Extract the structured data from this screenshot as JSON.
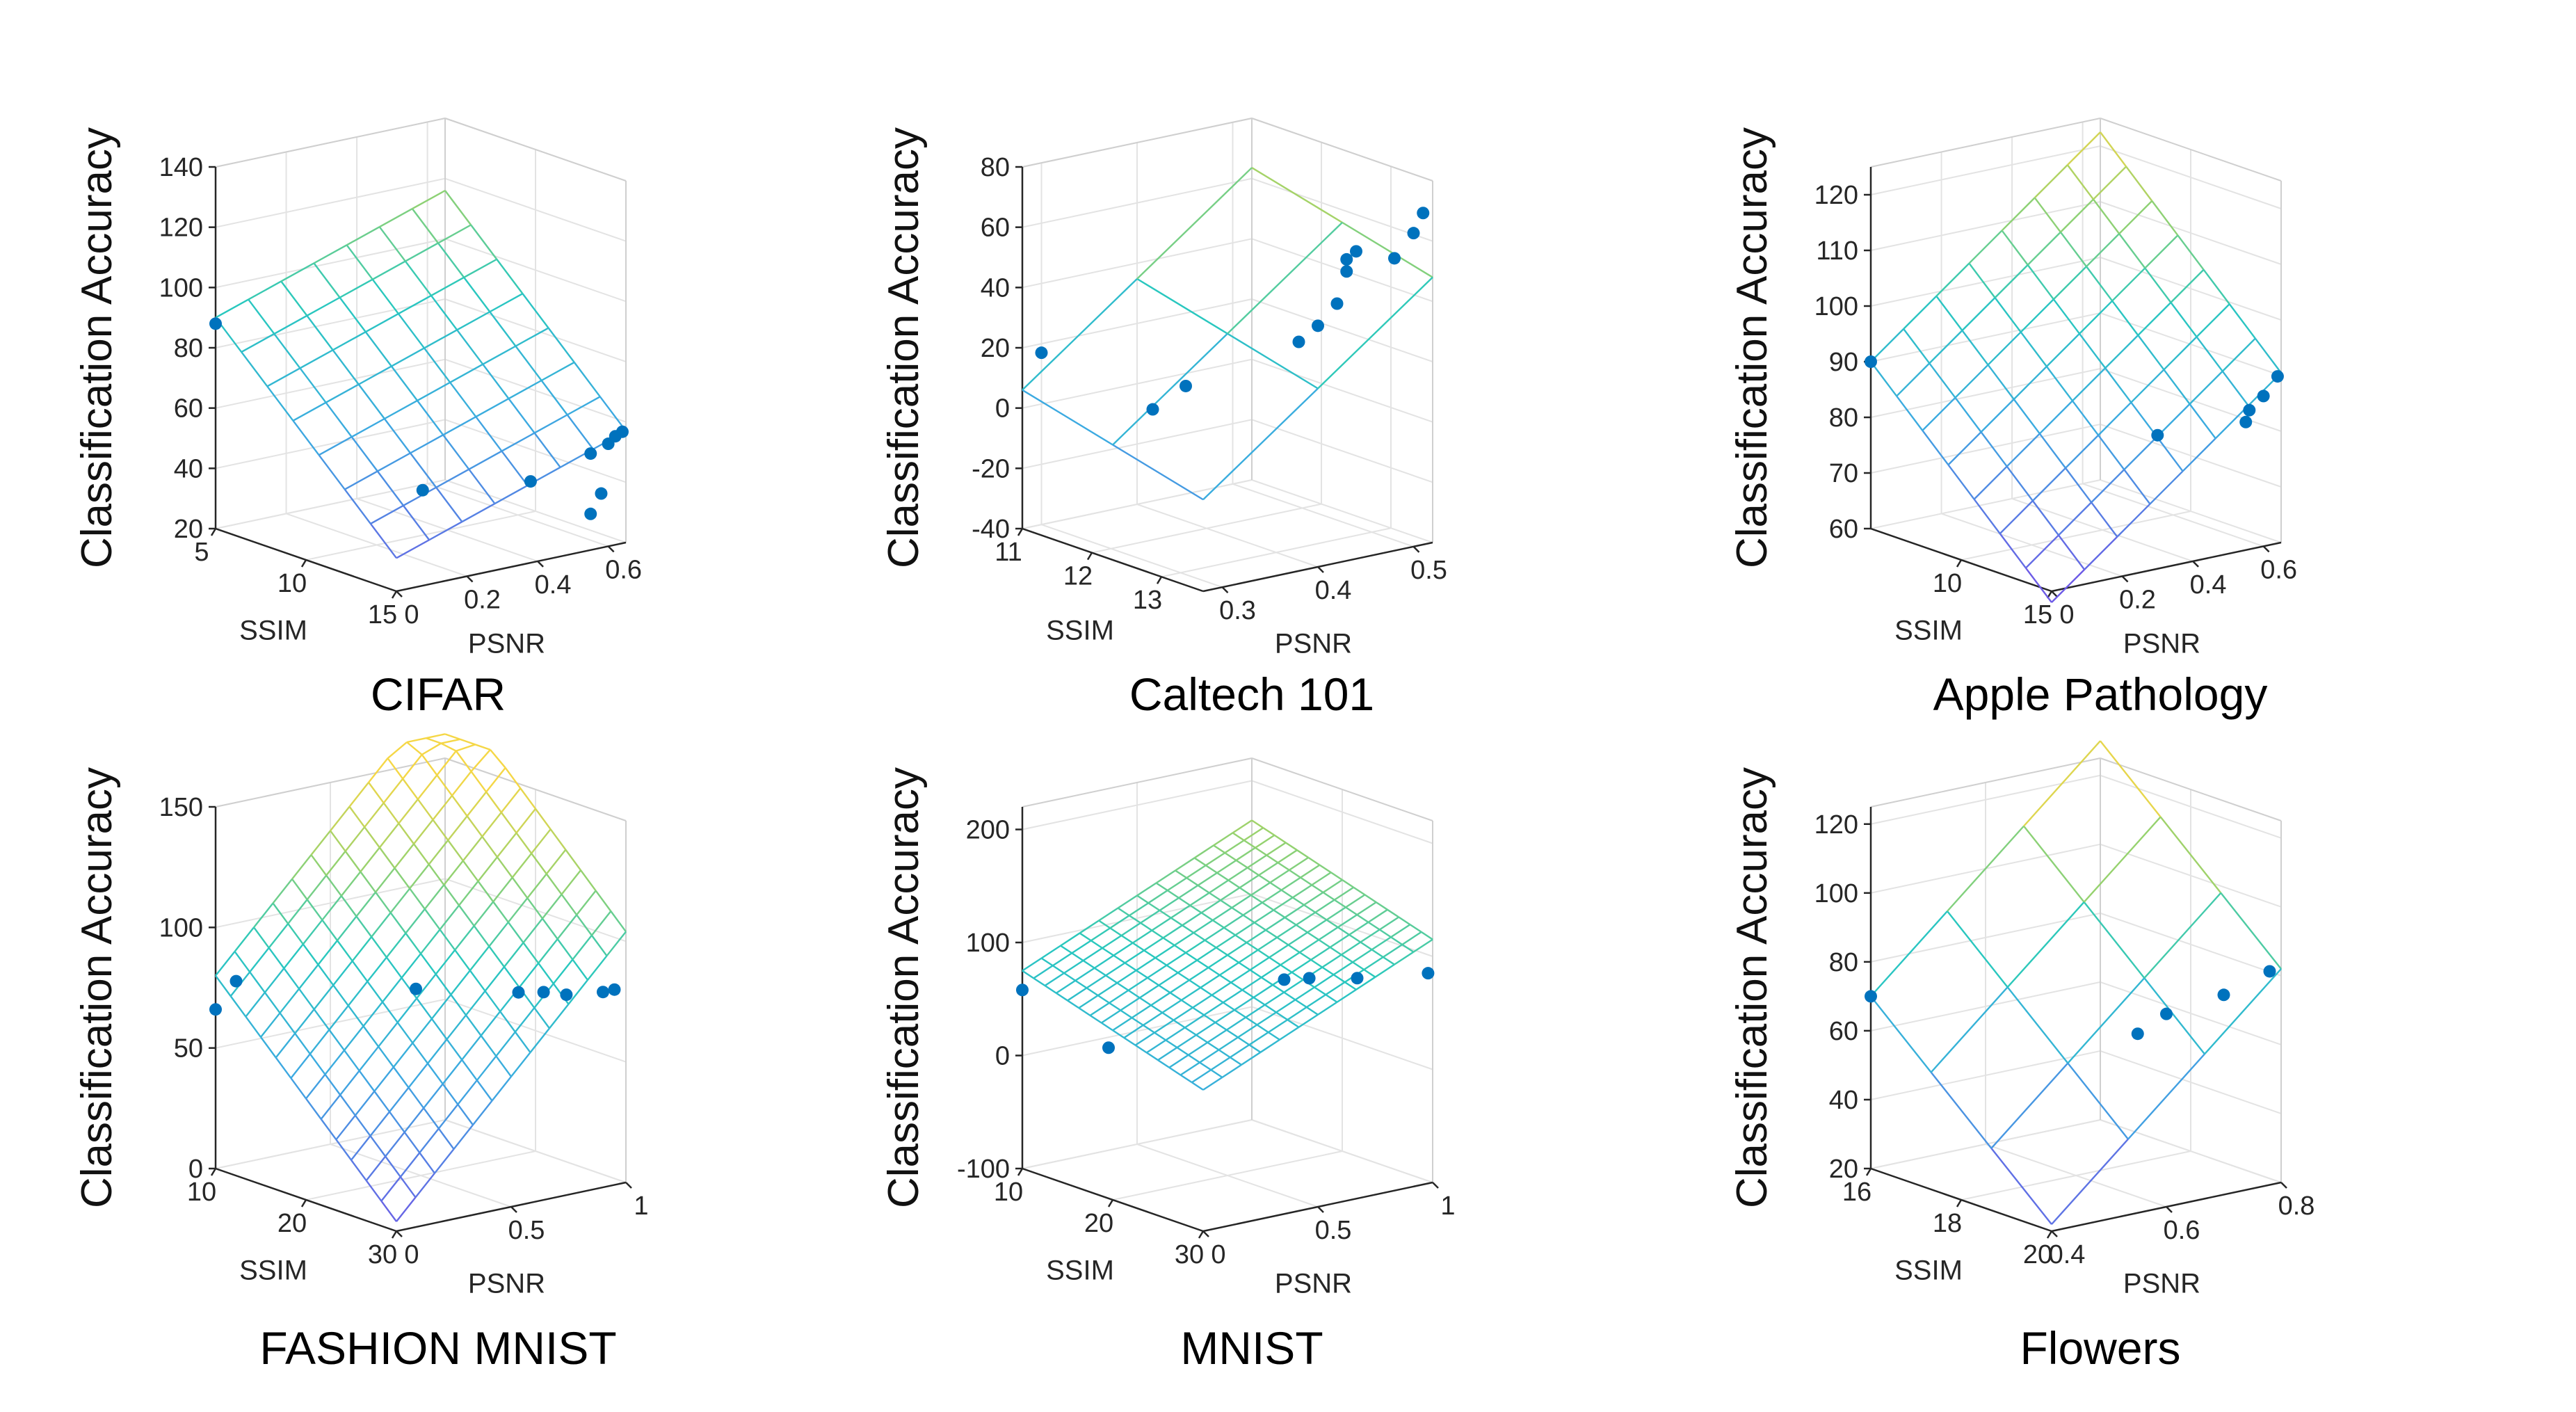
{
  "figure": {
    "colors": {
      "points": "#0072BD",
      "axis": "#262626",
      "grid": "#e3e3e3"
    }
  },
  "chart_data": [
    {
      "id": "cifar",
      "type": "scatter",
      "title": "CIFAR",
      "xlabel": "SSIM",
      "ylabel": "PSNR",
      "zlabel": "Classification Accuracy",
      "xlim": [
        5,
        15
      ],
      "ylim": [
        0,
        0.65
      ],
      "zlim": [
        20,
        140
      ],
      "xticks": [
        5,
        10,
        15
      ],
      "yticks": [
        0,
        0.2,
        0.4,
        0.6
      ],
      "zticks": [
        20,
        40,
        60,
        80,
        100,
        120,
        140
      ],
      "xtick_labels": [
        "5",
        "10",
        "15"
      ],
      "ytick_labels": [
        "0",
        "0.2",
        "0.4",
        "0.6"
      ],
      "ztick_labels": [
        "20",
        "40",
        "60",
        "80",
        "100",
        "120",
        "140"
      ],
      "plane": {
        "z_origin": 90,
        "dz_dx": -5.9,
        "dz_dy": 40,
        "mesh": [
          7,
          7
        ]
      },
      "points": [
        {
          "x": 5,
          "y": 0,
          "z": 88
        },
        {
          "x": 14.5,
          "y": 0.1,
          "z": 50
        },
        {
          "x": 15,
          "y": 0.38,
          "z": 47
        },
        {
          "x": 15,
          "y": 0.55,
          "z": 52
        },
        {
          "x": 15,
          "y": 0.6,
          "z": 54
        },
        {
          "x": 15,
          "y": 0.62,
          "z": 56
        },
        {
          "x": 15,
          "y": 0.64,
          "z": 57
        },
        {
          "x": 15,
          "y": 0.58,
          "z": 38
        },
        {
          "x": 15,
          "y": 0.55,
          "z": 32
        }
      ]
    },
    {
      "id": "caltech",
      "type": "scatter",
      "title": "Caltech 101",
      "xlabel": "SSIM",
      "ylabel": "PSNR",
      "zlabel": "Classification Accuracy",
      "xlim": [
        11,
        13.6
      ],
      "ylim": [
        0.28,
        0.52
      ],
      "zlim": [
        -40,
        80
      ],
      "xticks": [
        11,
        12,
        13
      ],
      "yticks": [
        0.3,
        0.4,
        0.5
      ],
      "zticks": [
        -40,
        -20,
        0,
        20,
        40,
        60,
        80
      ],
      "xtick_labels": [
        "11",
        "12",
        "13"
      ],
      "ytick_labels": [
        "0.3",
        "0.4",
        "0.5"
      ],
      "ztick_labels": [
        "-40",
        "-20",
        "0",
        "20",
        "40",
        "60",
        "80"
      ],
      "plane": {
        "z_origin": 6,
        "dz_dx": -6,
        "dz_dy": 240,
        "mesh": [
          2,
          2
        ]
      },
      "points": [
        {
          "x": 11,
          "y": 0.3,
          "z": 17
        },
        {
          "x": 12.6,
          "y": 0.3,
          "z": 11
        },
        {
          "x": 12.8,
          "y": 0.32,
          "z": 19
        },
        {
          "x": 13.6,
          "y": 0.38,
          "z": 36
        },
        {
          "x": 13.6,
          "y": 0.4,
          "z": 40
        },
        {
          "x": 13.6,
          "y": 0.42,
          "z": 46
        },
        {
          "x": 13.6,
          "y": 0.43,
          "z": 56
        },
        {
          "x": 13.6,
          "y": 0.43,
          "z": 60
        },
        {
          "x": 13.6,
          "y": 0.44,
          "z": 62
        },
        {
          "x": 13.6,
          "y": 0.48,
          "z": 57
        },
        {
          "x": 13.6,
          "y": 0.5,
          "z": 64
        },
        {
          "x": 13.6,
          "y": 0.51,
          "z": 70
        }
      ]
    },
    {
      "id": "apple",
      "type": "scatter",
      "title": "Apple Pathology",
      "xlabel": "SSIM",
      "ylabel": "PSNR",
      "zlabel": "Classification Accuracy",
      "xlim": [
        5,
        15
      ],
      "ylim": [
        0,
        0.65
      ],
      "zlim": [
        60,
        125
      ],
      "xticks": [
        10,
        15
      ],
      "yticks": [
        0,
        0.2,
        0.4,
        0.6
      ],
      "zticks": [
        60,
        70,
        80,
        90,
        100,
        110,
        120
      ],
      "xtick_labels": [
        "10",
        "15"
      ],
      "ytick_labels": [
        "0",
        "0.2",
        "0.4",
        "0.6"
      ],
      "ztick_labels": [
        "60",
        "70",
        "80",
        "90",
        "100",
        "110",
        "120"
      ],
      "plane": {
        "z_origin": 90,
        "dz_dx": -3.2,
        "dz_dy": 50,
        "mesh": [
          7,
          7
        ]
      },
      "points": [
        {
          "x": 5,
          "y": 0,
          "z": 90
        },
        {
          "x": 15,
          "y": 0.3,
          "z": 84
        },
        {
          "x": 15,
          "y": 0.55,
          "z": 83
        },
        {
          "x": 15,
          "y": 0.56,
          "z": 85
        },
        {
          "x": 15,
          "y": 0.6,
          "z": 87
        },
        {
          "x": 15,
          "y": 0.64,
          "z": 90
        }
      ]
    },
    {
      "id": "fashion",
      "type": "scatter",
      "title": "FASHION MNIST",
      "xlabel": "SSIM",
      "ylabel": "PSNR",
      "zlabel": "Classification Accuracy",
      "xlim": [
        10,
        30
      ],
      "ylim": [
        0,
        1
      ],
      "zlim": [
        0,
        150
      ],
      "xticks": [
        10,
        20,
        30
      ],
      "yticks": [
        0,
        0.5,
        1
      ],
      "zticks": [
        0,
        50,
        100,
        150
      ],
      "xtick_labels": [
        "10",
        "20",
        "30"
      ],
      "ytick_labels": [
        "0",
        "0.5",
        "1"
      ],
      "ztick_labels": [
        "0",
        "50",
        "100",
        "150"
      ],
      "plane": {
        "z_origin": 80,
        "dz_dx": -3.8,
        "dz_dy": 100,
        "mesh": [
          12,
          12
        ]
      },
      "points": [
        {
          "x": 10,
          "y": 0,
          "z": 66
        },
        {
          "x": 11,
          "y": 0.05,
          "z": 78
        },
        {
          "x": 22,
          "y": 0.4,
          "z": 82
        },
        {
          "x": 27,
          "y": 0.65,
          "z": 82
        },
        {
          "x": 28,
          "y": 0.72,
          "z": 82
        },
        {
          "x": 29,
          "y": 0.78,
          "z": 81
        },
        {
          "x": 30,
          "y": 0.9,
          "z": 81
        },
        {
          "x": 30,
          "y": 0.95,
          "z": 81
        }
      ]
    },
    {
      "id": "mnist",
      "type": "scatter",
      "title": "MNIST",
      "xlabel": "SSIM",
      "ylabel": "PSNR",
      "zlabel": "Classification Accuracy",
      "xlim": [
        10,
        30
      ],
      "ylim": [
        0,
        1
      ],
      "zlim": [
        -100,
        220
      ],
      "xticks": [
        10,
        20,
        30
      ],
      "yticks": [
        0,
        0.5,
        1
      ],
      "zticks": [
        -100,
        0,
        100,
        200
      ],
      "xtick_labels": [
        "10",
        "20",
        "30"
      ],
      "ytick_labels": [
        "0",
        "0.5",
        "1"
      ],
      "ztick_labels": [
        "-100",
        "0",
        "100",
        "200"
      ],
      "plane": {
        "z_origin": 75,
        "dz_dx": -2.5,
        "dz_dy": 90,
        "mesh": [
          16,
          12
        ]
      },
      "points": [
        {
          "x": 10,
          "y": 0,
          "z": 58
        },
        {
          "x": 17,
          "y": 0.1,
          "z": 22
        },
        {
          "x": 25,
          "y": 0.55,
          "z": 85
        },
        {
          "x": 26,
          "y": 0.62,
          "z": 86
        },
        {
          "x": 28,
          "y": 0.75,
          "z": 86
        },
        {
          "x": 30,
          "y": 0.98,
          "z": 86
        }
      ]
    },
    {
      "id": "flowers",
      "type": "scatter",
      "title": "Flowers",
      "xlabel": "SSIM",
      "ylabel": "PSNR",
      "zlabel": "Classification Accuracy",
      "xlim": [
        16,
        20
      ],
      "ylim": [
        0.4,
        0.8
      ],
      "zlim": [
        20,
        125
      ],
      "xticks": [
        16,
        18,
        20
      ],
      "yticks": [
        0.4,
        0.6,
        0.8
      ],
      "zticks": [
        20,
        40,
        60,
        80,
        100,
        120
      ],
      "xtick_labels": [
        "16",
        "18",
        "20"
      ],
      "ytick_labels": [
        "0.4",
        "0.6",
        "0.8"
      ],
      "ztick_labels": [
        "20",
        "40",
        "60",
        "80",
        "100",
        "120"
      ],
      "plane": {
        "z_origin": 70,
        "dz_dx": -12,
        "dz_dy": 150,
        "mesh": [
          3,
          3
        ]
      },
      "points": [
        {
          "x": 16,
          "y": 0.4,
          "z": 70
        },
        {
          "x": 20,
          "y": 0.55,
          "z": 72
        },
        {
          "x": 20,
          "y": 0.6,
          "z": 76
        },
        {
          "x": 20,
          "y": 0.7,
          "z": 78
        },
        {
          "x": 20,
          "y": 0.78,
          "z": 82
        }
      ]
    }
  ]
}
